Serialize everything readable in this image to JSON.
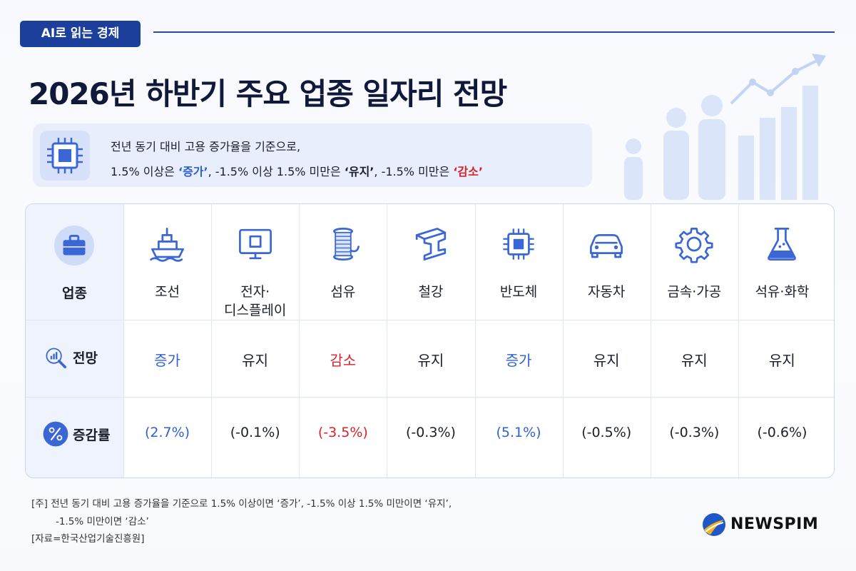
{
  "badge": "AI로 읽는 경제",
  "title": "2026년 하반기 주요 업종 일자리 전망",
  "criteria": {
    "line1": "전년 동기 대비 고용 증가율을 기준으로,",
    "line2": [
      {
        "text": "1.5% 이상은 "
      },
      {
        "text": "‘증가’",
        "color": "#2f5fd0"
      },
      {
        "text": ", -1.5% 이상 1.5% 미만은 "
      },
      {
        "text": "‘유지’",
        "color": "#1b1f2a"
      },
      {
        "text": ", -1.5% 미만은 "
      },
      {
        "text": "‘감소’",
        "color": "#d8232a"
      },
      {
        "text": ""
      }
    ]
  },
  "table": {
    "row_labels": [
      "업종",
      "전망",
      "증감률"
    ],
    "columns": [
      {
        "name": "조선",
        "outlook": "증가",
        "change": "(2.7%)",
        "color": "#2f5fd0"
      },
      {
        "name": "전자·\n디스플레이",
        "outlook": "유지",
        "change": "(-0.1%)",
        "color": "#1b1f2a"
      },
      {
        "name": "섬유",
        "outlook": "감소",
        "change": "(-3.5%)",
        "color": "#d8232a"
      },
      {
        "name": "철강",
        "outlook": "유지",
        "change": "(-0.3%)",
        "color": "#1b1f2a"
      },
      {
        "name": "반도체",
        "outlook": "증가",
        "change": "(5.1%)",
        "color": "#2f5fd0"
      },
      {
        "name": "자동차",
        "outlook": "유지",
        "change": "(-0.5%)",
        "color": "#1b1f2a"
      },
      {
        "name": "금속·가공",
        "outlook": "유지",
        "change": "(-0.3%)",
        "color": "#1b1f2a"
      },
      {
        "name": "석유·화학",
        "outlook": "유지",
        "change": "(-0.6%)",
        "color": "#1b1f2a"
      }
    ]
  },
  "notes": [
    "[주] 전년 동기 대비 고용 증가율을 기준으로 1.5% 이상이면 ‘증가’, -1.5% 이상 1.5% 미만이면 ‘유지’,",
    "-1.5% 미만이면 ‘감소’",
    "[자료=한국산업기술진흥원]"
  ],
  "brand": "NEWSPIM"
}
